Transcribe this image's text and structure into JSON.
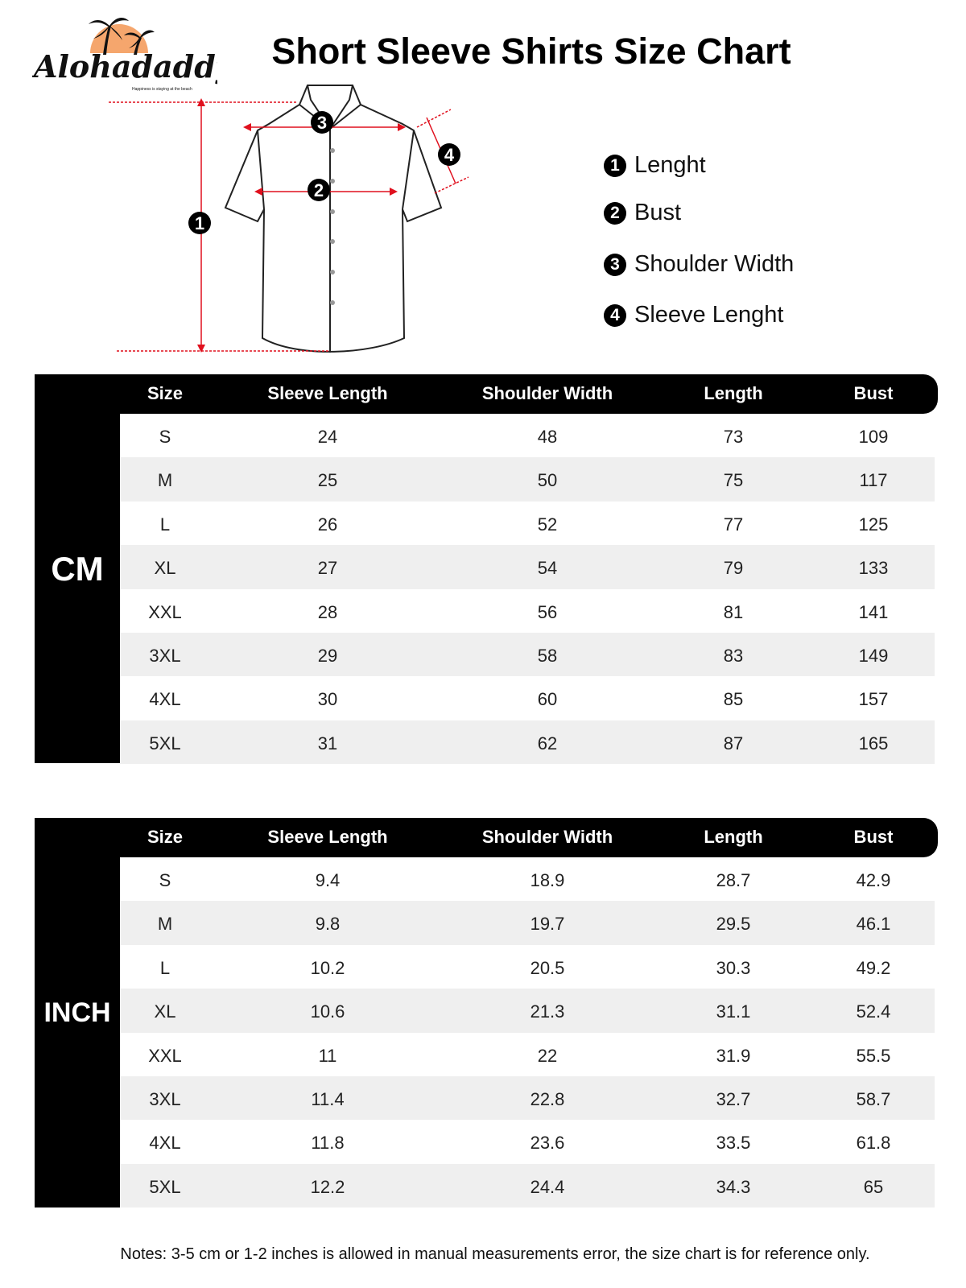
{
  "logo": {
    "brand": "Alohadaddy",
    "tagline": "Happiness is staying at the beach"
  },
  "title": "Short Sleeve Shirts Size Chart",
  "diagram_markers": [
    "1",
    "2",
    "3",
    "4"
  ],
  "legend": [
    {
      "num": "1",
      "label": "Lenght"
    },
    {
      "num": "2",
      "label": "Bust"
    },
    {
      "num": "3",
      "label": "Shoulder Width"
    },
    {
      "num": "4",
      "label": "Sleeve Lenght"
    }
  ],
  "columns": [
    "Size",
    "Sleeve Length",
    "Shoulder Width",
    "Length",
    "Bust"
  ],
  "tables": [
    {
      "unit": "CM",
      "rows": [
        [
          "S",
          "24",
          "48",
          "73",
          "109"
        ],
        [
          "M",
          "25",
          "50",
          "75",
          "117"
        ],
        [
          "L",
          "26",
          "52",
          "77",
          "125"
        ],
        [
          "XL",
          "27",
          "54",
          "79",
          "133"
        ],
        [
          "XXL",
          "28",
          "56",
          "81",
          "141"
        ],
        [
          "3XL",
          "29",
          "58",
          "83",
          "149"
        ],
        [
          "4XL",
          "30",
          "60",
          "85",
          "157"
        ],
        [
          "5XL",
          "31",
          "62",
          "87",
          "165"
        ]
      ]
    },
    {
      "unit": "INCH",
      "rows": [
        [
          "S",
          "9.4",
          "18.9",
          "28.7",
          "42.9"
        ],
        [
          "M",
          "9.8",
          "19.7",
          "29.5",
          "46.1"
        ],
        [
          "L",
          "10.2",
          "20.5",
          "30.3",
          "49.2"
        ],
        [
          "XL",
          "10.6",
          "21.3",
          "31.1",
          "52.4"
        ],
        [
          "XXL",
          "11",
          "22",
          "31.9",
          "55.5"
        ],
        [
          "3XL",
          "11.4",
          "22.8",
          "32.7",
          "58.7"
        ],
        [
          "4XL",
          "11.8",
          "23.6",
          "33.5",
          "61.8"
        ],
        [
          "5XL",
          "12.2",
          "24.4",
          "34.3",
          "65"
        ]
      ]
    }
  ],
  "notes": "Notes: 3-5 cm or 1-2 inches is allowed in manual measurements error, the size chart is for reference only.",
  "colors": {
    "accent": "#e0101e",
    "logo_sun": "#f5a66d",
    "header": "#000000",
    "stripe": "#efefef"
  }
}
